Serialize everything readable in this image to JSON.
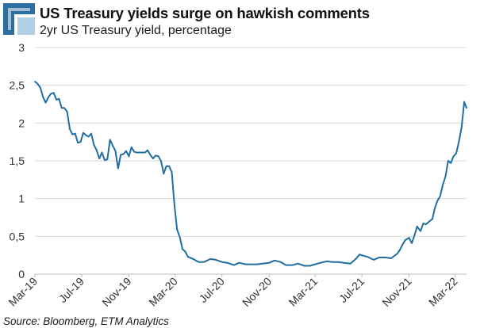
{
  "header": {
    "title": "US Treasury yields surge on hawkish comments",
    "subtitle": "2yr US Treasury yield, percentage"
  },
  "footer": {
    "source": "Source: Bloomberg, ETM Analytics"
  },
  "colors": {
    "line": "#1f6fa3",
    "grid": "#d9d9d9",
    "logo": "#2b6f9e"
  },
  "chart_data": {
    "type": "line",
    "title": "US Treasury yields surge on hawkish comments",
    "subtitle": "2yr US Treasury yield, percentage",
    "xlabel": "",
    "ylabel": "",
    "ylim": [
      0,
      3
    ],
    "yticks": [
      0,
      0.5,
      1,
      1.5,
      2,
      2.5,
      3
    ],
    "ytick_labels": [
      "0",
      "0,5",
      "1",
      "1,5",
      "2",
      "2,5",
      "3"
    ],
    "xlim": [
      "2019-03-01",
      "2022-03-31"
    ],
    "xticks": [
      "2019-03-01",
      "2019-07-01",
      "2019-11-01",
      "2020-03-01",
      "2020-07-01",
      "2020-11-01",
      "2021-03-01",
      "2021-07-01",
      "2021-11-01",
      "2022-03-01"
    ],
    "xtick_labels": [
      "Mar-19",
      "Jul-19",
      "Nov-19",
      "Mar-20",
      "Jul-20",
      "Nov-20",
      "Mar-21",
      "Jul-21",
      "Nov-21",
      "Mar-22"
    ],
    "grid": true,
    "legend": "none",
    "series": [
      {
        "x": [
          "2019-03-01",
          "2019-03-08",
          "2019-03-15",
          "2019-03-22",
          "2019-03-29",
          "2019-04-05",
          "2019-04-12",
          "2019-04-19",
          "2019-04-26",
          "2019-05-03",
          "2019-05-10",
          "2019-05-17",
          "2019-05-24",
          "2019-05-31",
          "2019-06-07",
          "2019-06-14",
          "2019-06-21",
          "2019-06-28",
          "2019-07-05",
          "2019-07-12",
          "2019-07-19",
          "2019-07-26",
          "2019-08-02",
          "2019-08-09",
          "2019-08-16",
          "2019-08-23",
          "2019-08-30",
          "2019-09-06",
          "2019-09-13",
          "2019-09-20",
          "2019-09-27",
          "2019-10-04",
          "2019-10-11",
          "2019-10-18",
          "2019-10-25",
          "2019-11-01",
          "2019-11-08",
          "2019-11-15",
          "2019-11-22",
          "2019-11-29",
          "2019-12-06",
          "2019-12-13",
          "2019-12-20",
          "2019-12-27",
          "2020-01-03",
          "2020-01-10",
          "2020-01-17",
          "2020-01-24",
          "2020-01-31",
          "2020-02-07",
          "2020-02-14",
          "2020-02-21",
          "2020-02-28",
          "2020-03-06",
          "2020-03-13",
          "2020-03-20",
          "2020-03-27",
          "2020-04-03",
          "2020-04-17",
          "2020-05-01",
          "2020-05-15",
          "2020-06-01",
          "2020-06-15",
          "2020-07-01",
          "2020-07-15",
          "2020-08-01",
          "2020-08-15",
          "2020-09-01",
          "2020-09-15",
          "2020-10-01",
          "2020-10-15",
          "2020-11-01",
          "2020-11-15",
          "2020-12-01",
          "2020-12-15",
          "2021-01-01",
          "2021-01-15",
          "2021-02-01",
          "2021-02-15",
          "2021-03-01",
          "2021-03-15",
          "2021-04-01",
          "2021-04-15",
          "2021-05-01",
          "2021-05-15",
          "2021-06-01",
          "2021-06-15",
          "2021-06-25",
          "2021-07-01",
          "2021-07-15",
          "2021-08-01",
          "2021-08-15",
          "2021-09-01",
          "2021-09-15",
          "2021-10-01",
          "2021-10-08",
          "2021-10-15",
          "2021-10-22",
          "2021-11-01",
          "2021-11-08",
          "2021-11-15",
          "2021-11-22",
          "2021-12-01",
          "2021-12-08",
          "2021-12-15",
          "2021-12-22",
          "2022-01-01",
          "2022-01-07",
          "2022-01-14",
          "2022-01-21",
          "2022-01-28",
          "2022-02-04",
          "2022-02-11",
          "2022-02-18",
          "2022-02-25",
          "2022-03-04",
          "2022-03-11",
          "2022-03-18",
          "2022-03-25",
          "2022-03-31"
        ],
        "values": [
          2.55,
          2.52,
          2.47,
          2.35,
          2.27,
          2.34,
          2.39,
          2.4,
          2.31,
          2.32,
          2.2,
          2.2,
          2.15,
          1.92,
          1.85,
          1.86,
          1.74,
          1.75,
          1.87,
          1.84,
          1.82,
          1.86,
          1.71,
          1.64,
          1.53,
          1.61,
          1.51,
          1.52,
          1.78,
          1.7,
          1.63,
          1.4,
          1.58,
          1.59,
          1.63,
          1.56,
          1.68,
          1.62,
          1.61,
          1.61,
          1.61,
          1.61,
          1.64,
          1.58,
          1.53,
          1.57,
          1.56,
          1.5,
          1.33,
          1.43,
          1.43,
          1.35,
          0.91,
          0.59,
          0.49,
          0.33,
          0.3,
          0.23,
          0.2,
          0.16,
          0.16,
          0.2,
          0.19,
          0.16,
          0.15,
          0.12,
          0.15,
          0.13,
          0.13,
          0.13,
          0.14,
          0.15,
          0.18,
          0.16,
          0.12,
          0.12,
          0.14,
          0.11,
          0.11,
          0.13,
          0.15,
          0.17,
          0.16,
          0.16,
          0.15,
          0.14,
          0.2,
          0.26,
          0.25,
          0.23,
          0.19,
          0.22,
          0.22,
          0.21,
          0.27,
          0.32,
          0.39,
          0.45,
          0.48,
          0.41,
          0.51,
          0.63,
          0.57,
          0.67,
          0.66,
          0.69,
          0.73,
          0.87,
          0.97,
          1.03,
          1.18,
          1.29,
          1.5,
          1.47,
          1.56,
          1.6,
          1.75,
          1.94,
          2.28,
          2.2
        ]
      }
    ]
  }
}
